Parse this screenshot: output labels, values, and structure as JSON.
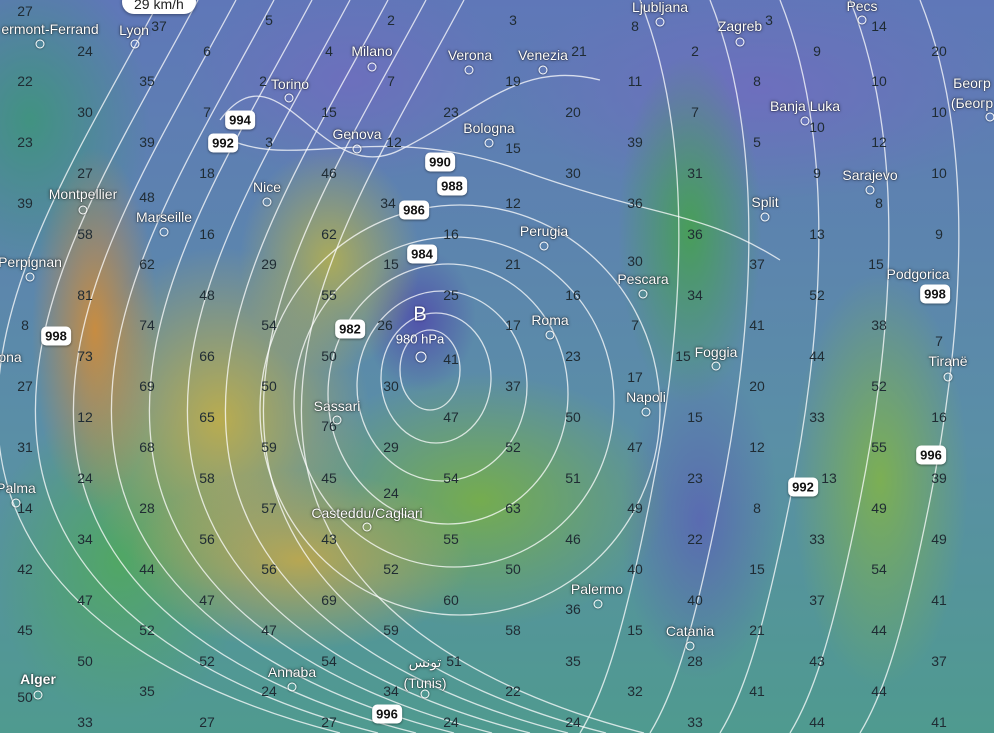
{
  "map": {
    "layer": "wind",
    "speed_unit": "km/h",
    "cursor_wind_speed": "29 km/h",
    "low_pressure": {
      "letter": "B",
      "value": "980 hPa"
    },
    "colors": {
      "calm": "#6a6db8",
      "moderate": "#3f9e5a",
      "strong": "#c9a040",
      "isobar": "#ffffff"
    },
    "wind_speed_grid": [
      [
        27,
        37,
        5,
        2,
        3,
        8,
        3,
        14
      ],
      [
        24,
        6,
        4,
        null,
        21,
        2,
        9,
        20
      ],
      [
        22,
        35,
        2,
        7,
        19,
        11,
        8,
        10
      ],
      [
        30,
        7,
        15,
        23,
        20,
        7,
        10,
        10
      ],
      [
        23,
        39,
        3,
        12,
        15,
        39,
        5,
        12
      ],
      [
        27,
        18,
        46,
        null,
        30,
        31,
        9,
        10
      ],
      [
        39,
        48,
        null,
        34,
        12,
        36,
        null,
        8
      ],
      [
        58,
        16,
        62,
        16,
        null,
        36,
        13,
        9
      ],
      [
        null,
        62,
        29,
        15,
        21,
        30,
        37,
        15
      ],
      [
        81,
        48,
        55,
        25,
        16,
        34,
        52,
        null
      ],
      [
        8,
        74,
        54,
        26,
        17,
        7,
        41,
        38
      ],
      [
        73,
        66,
        50,
        41,
        23,
        15,
        44,
        7
      ],
      [
        27,
        69,
        50,
        30,
        37,
        17,
        20,
        52
      ],
      [
        12,
        65,
        76,
        47,
        50,
        15,
        33,
        16
      ],
      [
        31,
        68,
        59,
        29,
        52,
        47,
        12,
        55
      ],
      [
        24,
        58,
        45,
        54,
        51,
        23,
        13,
        39
      ],
      [
        14,
        28,
        57,
        24,
        63,
        49,
        8,
        49
      ],
      [
        34,
        56,
        43,
        55,
        46,
        22,
        33,
        49
      ],
      [
        42,
        44,
        56,
        52,
        50,
        40,
        15,
        54
      ],
      [
        47,
        47,
        69,
        60,
        36,
        40,
        37,
        41
      ],
      [
        45,
        52,
        47,
        59,
        58,
        15,
        21,
        44
      ],
      [
        50,
        52,
        54,
        51,
        35,
        28,
        43,
        37
      ],
      [
        50,
        35,
        24,
        34,
        22,
        32,
        41,
        44
      ],
      [
        33,
        27,
        27,
        24,
        24,
        33,
        44,
        41
      ]
    ],
    "cities": [
      {
        "name": "ermont-Ferrand"
      },
      {
        "name": "Lyon"
      },
      {
        "name": "Milano"
      },
      {
        "name": "Verona"
      },
      {
        "name": "Venezia"
      },
      {
        "name": "Ljubljana"
      },
      {
        "name": "Zagreb"
      },
      {
        "name": "Pecs"
      },
      {
        "name": "Torino"
      },
      {
        "name": "Banja Luka"
      },
      {
        "name": "Беогр"
      },
      {
        "name": "(Беогр"
      },
      {
        "name": "Genova"
      },
      {
        "name": "Bologna"
      },
      {
        "name": "Nice"
      },
      {
        "name": "Montpellier"
      },
      {
        "name": "Marseille"
      },
      {
        "name": "Sarajevo"
      },
      {
        "name": "Split"
      },
      {
        "name": "Perugia"
      },
      {
        "name": "Perpignan"
      },
      {
        "name": "Pescara"
      },
      {
        "name": "Podgorica"
      },
      {
        "name": "Roma"
      },
      {
        "name": "Foggia"
      },
      {
        "name": "Tiranë"
      },
      {
        "name": "ona"
      },
      {
        "name": "Napoli"
      },
      {
        "name": "Sassari"
      },
      {
        "name": "Palma"
      },
      {
        "name": "Casteddu/Cagliari"
      },
      {
        "name": "Palermo"
      },
      {
        "name": "Catania"
      },
      {
        "name": "Annaba"
      },
      {
        "name": "تونس"
      },
      {
        "name": "(Tunis)"
      },
      {
        "name": "Alger"
      }
    ],
    "isobar_labels": [
      "994",
      "992",
      "990",
      "988",
      "986",
      "984",
      "982",
      "998",
      "998",
      "996",
      "992",
      "996"
    ]
  }
}
